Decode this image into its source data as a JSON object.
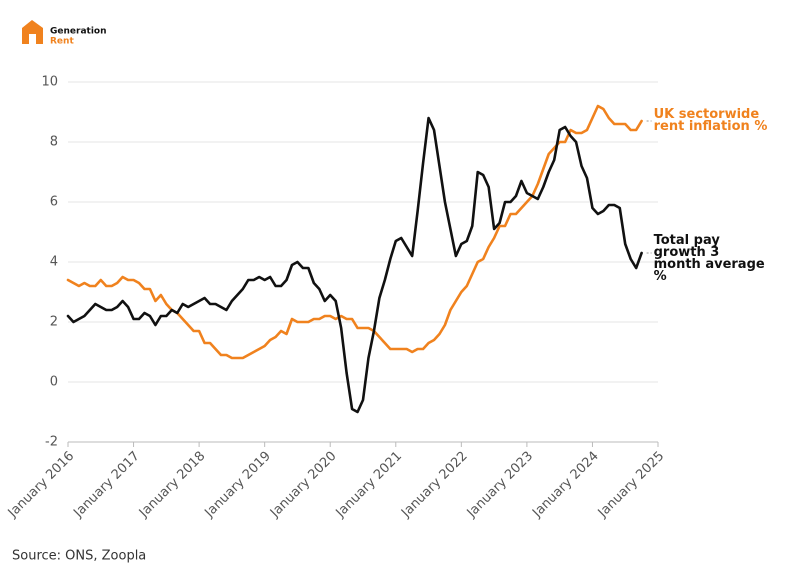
{
  "header": {
    "logo_line1": "Generation",
    "logo_line2": "Rent"
  },
  "chart_data": {
    "type": "line",
    "x": [
      "2016-01",
      "2016-02",
      "2016-03",
      "2016-04",
      "2016-05",
      "2016-06",
      "2016-07",
      "2016-08",
      "2016-09",
      "2016-10",
      "2016-11",
      "2016-12",
      "2017-01",
      "2017-02",
      "2017-03",
      "2017-04",
      "2017-05",
      "2017-06",
      "2017-07",
      "2017-08",
      "2017-09",
      "2017-10",
      "2017-11",
      "2017-12",
      "2018-01",
      "2018-02",
      "2018-03",
      "2018-04",
      "2018-05",
      "2018-06",
      "2018-07",
      "2018-08",
      "2018-09",
      "2018-10",
      "2018-11",
      "2018-12",
      "2019-01",
      "2019-02",
      "2019-03",
      "2019-04",
      "2019-05",
      "2019-06",
      "2019-07",
      "2019-08",
      "2019-09",
      "2019-10",
      "2019-11",
      "2019-12",
      "2020-01",
      "2020-02",
      "2020-03",
      "2020-04",
      "2020-05",
      "2020-06",
      "2020-07",
      "2020-08",
      "2020-09",
      "2020-10",
      "2020-11",
      "2020-12",
      "2021-01",
      "2021-02",
      "2021-03",
      "2021-04",
      "2021-05",
      "2021-06",
      "2021-07",
      "2021-08",
      "2021-09",
      "2021-10",
      "2021-11",
      "2021-12",
      "2022-01",
      "2022-02",
      "2022-03",
      "2022-04",
      "2022-05",
      "2022-06",
      "2022-07",
      "2022-08",
      "2022-09",
      "2022-10",
      "2022-11",
      "2022-12",
      "2023-01",
      "2023-02",
      "2023-03",
      "2023-04",
      "2023-05",
      "2023-06",
      "2023-07",
      "2023-08",
      "2023-09",
      "2023-10",
      "2023-11",
      "2023-12",
      "2024-01",
      "2024-02",
      "2024-03",
      "2024-04",
      "2024-05",
      "2024-06",
      "2024-07",
      "2024-08",
      "2024-09",
      "2024-10"
    ],
    "series": [
      {
        "name": "UK sectorwide rent inflation %",
        "color": "#f0821e",
        "values": [
          3.4,
          3.3,
          3.2,
          3.3,
          3.2,
          3.2,
          3.4,
          3.2,
          3.2,
          3.3,
          3.5,
          3.4,
          3.4,
          3.3,
          3.1,
          3.1,
          2.7,
          2.9,
          2.6,
          2.4,
          2.3,
          2.1,
          1.9,
          1.7,
          1.7,
          1.3,
          1.3,
          1.1,
          0.9,
          0.9,
          0.8,
          0.8,
          0.8,
          0.9,
          1.0,
          1.1,
          1.2,
          1.4,
          1.5,
          1.7,
          1.6,
          2.1,
          2.0,
          2.0,
          2.0,
          2.1,
          2.1,
          2.2,
          2.2,
          2.1,
          2.2,
          2.1,
          2.1,
          1.8,
          1.8,
          1.8,
          1.7,
          1.5,
          1.3,
          1.1,
          1.1,
          1.1,
          1.1,
          1.0,
          1.1,
          1.1,
          1.3,
          1.4,
          1.6,
          1.9,
          2.4,
          2.7,
          3.0,
          3.2,
          3.6,
          4.0,
          4.1,
          4.5,
          4.8,
          5.2,
          5.2,
          5.6,
          5.6,
          5.8,
          6.0,
          6.2,
          6.6,
          7.1,
          7.6,
          7.8,
          8.0,
          8.0,
          8.4,
          8.3,
          8.3,
          8.4,
          8.8,
          9.2,
          9.1,
          8.8,
          8.6,
          8.6,
          8.6,
          8.4,
          8.4,
          8.7
        ]
      },
      {
        "name": "Total pay growth 3 month average %",
        "color": "#111111",
        "values": [
          2.2,
          2.0,
          2.1,
          2.2,
          2.4,
          2.6,
          2.5,
          2.4,
          2.4,
          2.5,
          2.7,
          2.5,
          2.1,
          2.1,
          2.3,
          2.2,
          1.9,
          2.2,
          2.2,
          2.4,
          2.3,
          2.6,
          2.5,
          2.6,
          2.7,
          2.8,
          2.6,
          2.6,
          2.5,
          2.4,
          2.7,
          2.9,
          3.1,
          3.4,
          3.4,
          3.5,
          3.4,
          3.5,
          3.2,
          3.2,
          3.4,
          3.9,
          4.0,
          3.8,
          3.8,
          3.3,
          3.1,
          2.7,
          2.9,
          2.7,
          1.8,
          0.3,
          -0.9,
          -1.0,
          -0.6,
          0.8,
          1.7,
          2.8,
          3.4,
          4.1,
          4.7,
          4.8,
          4.5,
          4.2,
          5.7,
          7.3,
          8.8,
          8.4,
          7.2,
          6.0,
          5.1,
          4.2,
          4.6,
          4.7,
          5.2,
          7.0,
          6.9,
          6.5,
          5.1,
          5.3,
          6.0,
          6.0,
          6.2,
          6.7,
          6.3,
          6.2,
          6.1,
          6.5,
          7.0,
          7.4,
          8.4,
          8.5,
          8.2,
          8.0,
          7.2,
          6.8,
          5.8,
          5.6,
          5.7,
          5.9,
          5.9,
          5.8,
          4.6,
          4.1,
          3.8,
          4.3
        ]
      }
    ],
    "xlim": [
      "2016-01",
      "2025-01"
    ],
    "xticks": [
      {
        "value": "2016-01",
        "label": "January 2016"
      },
      {
        "value": "2017-01",
        "label": "January 2017"
      },
      {
        "value": "2018-01",
        "label": "January 2018"
      },
      {
        "value": "2019-01",
        "label": "January 2019"
      },
      {
        "value": "2020-01",
        "label": "January 2020"
      },
      {
        "value": "2021-01",
        "label": "January 2021"
      },
      {
        "value": "2022-01",
        "label": "January 2022"
      },
      {
        "value": "2023-01",
        "label": "January 2023"
      },
      {
        "value": "2024-01",
        "label": "January 2024"
      },
      {
        "value": "2025-01",
        "label": "January 2025"
      }
    ],
    "ylim": [
      -2,
      10
    ],
    "yticks": [
      -2,
      0,
      2,
      4,
      6,
      8,
      10
    ],
    "grid": true,
    "source": "Source: ONS, Zoopla"
  }
}
